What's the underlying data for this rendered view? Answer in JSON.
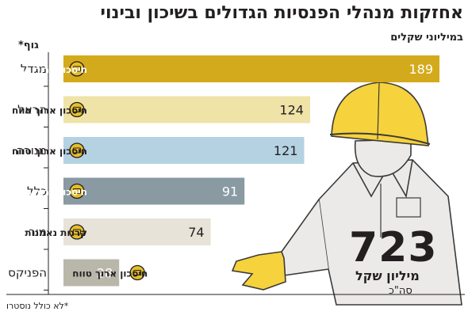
{
  "header": {
    "title": "אחזקות מנהלי הפנסיות הגדולים בשיכון ובינוי",
    "subtitle": "במיליוני שקלים",
    "body_label": "גוף*"
  },
  "total": {
    "value": "723",
    "unit": "מיליון שקל",
    "sub": "סה\"כ"
  },
  "footnote": "*לא כולל נוסטרו",
  "colors": {
    "migdal": "#d4aa1d",
    "harel": "#efe3a8",
    "menora": "#b5d2e3",
    "clal": "#8a9aa3",
    "mor": "#e7e3d8",
    "phoenix": "#b9b7aa",
    "coin": "#e5be2b",
    "worker_body": "#eceae9",
    "helmet": "#f6d23c"
  },
  "chart_data": {
    "type": "bar",
    "orientation": "horizontal",
    "title": "אחזקות מנהלי הפנסיות הגדולים בשיכון ובינוי",
    "subtitle": "במיליוני שקלים",
    "categories": [
      "מגדל",
      "הראל",
      "מנורה",
      "כלל",
      "מור",
      "הפניקס"
    ],
    "values": [
      189,
      124,
      121,
      91,
      74,
      28
    ],
    "fund_type_labels": [
      "חיסכון ארוך טווח",
      "חיסכון ארוך טווח",
      "חיסכון ארוך טווח",
      "חיסכון ארוך טווח",
      "קרנות נאמנות",
      "חיסכון ארוך טווח"
    ],
    "bar_colors": [
      "#d4aa1d",
      "#efe3a8",
      "#b5d2e3",
      "#8a9aa3",
      "#e7e3d8",
      "#b9b7aa"
    ],
    "value_colors": [
      "#ffffff",
      "#231f20",
      "#231f20",
      "#ffffff",
      "#231f20",
      "#ffffff"
    ],
    "fund_text_colors": [
      "#ffffff",
      "#231f20",
      "#231f20",
      "#ffffff",
      "#231f20",
      "#231f20"
    ],
    "xlim": [
      0,
      189
    ],
    "grid": false,
    "legend": "none"
  }
}
